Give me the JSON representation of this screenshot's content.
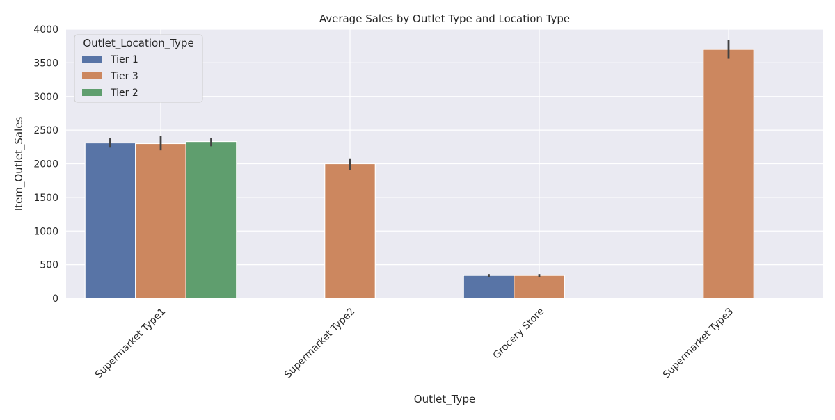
{
  "chart_data": {
    "type": "bar",
    "title": "Average Sales by Outlet Type and Location Type",
    "xlabel": "Outlet_Type",
    "ylabel": "Item_Outlet_Sales",
    "categories": [
      "Supermarket Type1",
      "Supermarket Type2",
      "Grocery Store",
      "Supermarket Type3"
    ],
    "ylim": [
      0,
      4000
    ],
    "yticks": [
      0,
      500,
      1000,
      1500,
      2000,
      2500,
      3000,
      3500,
      4000
    ],
    "grid": true,
    "legend": {
      "title": "Outlet_Location_Type",
      "placement": "upper-left"
    },
    "series": [
      {
        "name": "Tier 1",
        "color": "#5874a6",
        "values": [
          2310,
          null,
          340,
          null
        ],
        "err_low": [
          2240,
          null,
          320,
          null
        ],
        "err_high": [
          2380,
          null,
          360,
          null
        ]
      },
      {
        "name": "Tier 3",
        "color": "#cc875f",
        "values": [
          2300,
          2000,
          340,
          3700
        ],
        "err_low": [
          2200,
          1910,
          315,
          3560
        ],
        "err_high": [
          2410,
          2080,
          360,
          3840
        ]
      },
      {
        "name": "Tier 2",
        "color": "#5f9e6e",
        "values": [
          2330,
          null,
          null,
          null
        ],
        "err_low": [
          2260,
          null,
          null,
          null
        ],
        "err_high": [
          2380,
          null,
          null,
          null
        ]
      }
    ]
  }
}
